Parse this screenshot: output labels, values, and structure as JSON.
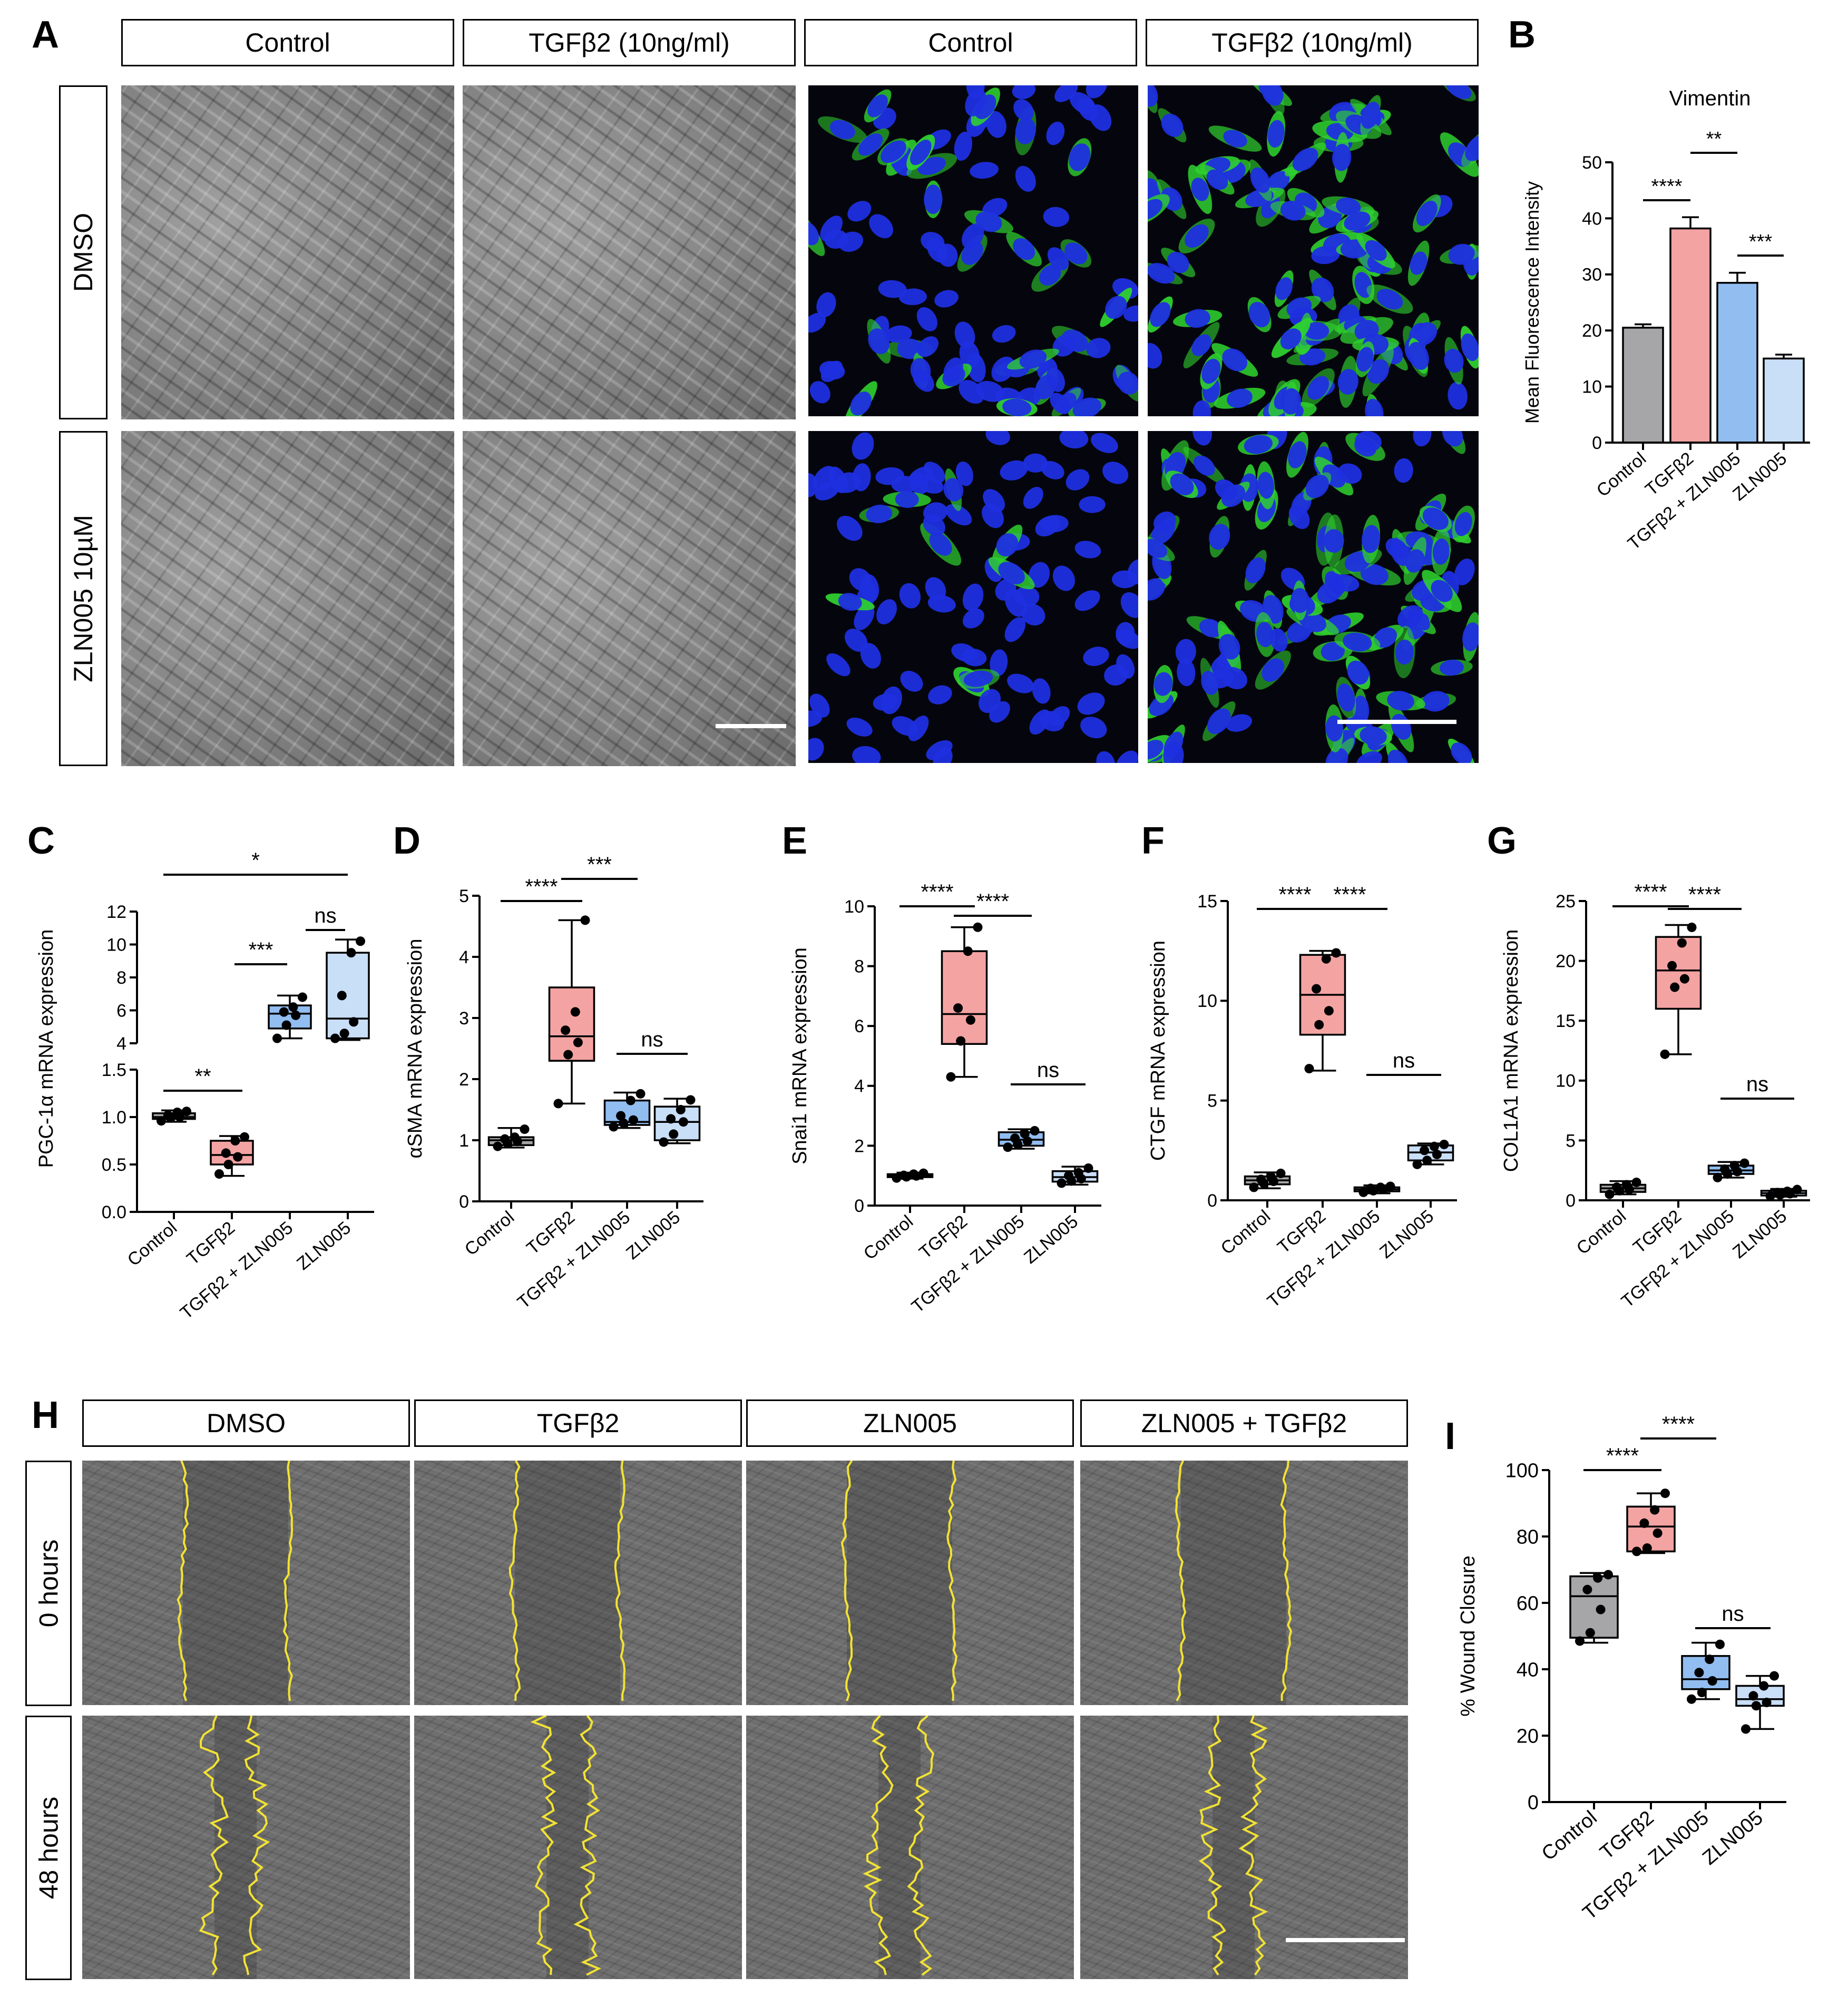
{
  "panels": {
    "A": "A",
    "B": "B",
    "C": "C",
    "D": "D",
    "E": "E",
    "F": "F",
    "G": "G",
    "H": "H",
    "I": "I"
  },
  "panelA": {
    "column_headers": [
      "Control",
      "TGFβ2 (10ng/ml)",
      "Control",
      "TGFβ2 (10ng/ml)"
    ],
    "row_labels": [
      "DMSO",
      "ZLN005 10µM"
    ]
  },
  "panelH": {
    "column_headers": [
      "DMSO",
      "TGFβ2",
      "ZLN005",
      "ZLN005 + TGFβ2"
    ],
    "row_labels": [
      "0 hours",
      "48 hours"
    ]
  },
  "colors": {
    "control": "#a6a6a8",
    "tgfb2": "#f4a3a3",
    "tgfb2_zln005": "#92bdf0",
    "zln005": "#c9def7",
    "wound_line": "#f2e234",
    "nuclei": "#1f2fe0",
    "vimentin": "#2fd02f"
  },
  "chart_data": [
    {
      "panel": "B",
      "type": "bar",
      "title": "Vimentin",
      "ylabel": "Mean Fluorescence Intensity",
      "categories": [
        "Control",
        "TGFβ2",
        "TGFβ2 + ZLN005",
        "ZLN005"
      ],
      "values": [
        20.5,
        38.2,
        28.5,
        15.0
      ],
      "errors": [
        0.6,
        2.0,
        1.8,
        0.7
      ],
      "ylim": [
        0,
        50
      ],
      "yticks": [
        "0",
        "10",
        "20",
        "30",
        "40",
        "50"
      ],
      "significance": [
        {
          "label": "****",
          "pair": [
            0,
            1
          ]
        },
        {
          "label": "**",
          "pair": [
            1,
            2
          ]
        },
        {
          "label": "***",
          "pair": [
            2,
            3
          ]
        }
      ]
    },
    {
      "panel": "C",
      "type": "box",
      "ylabel": "PGC-1α mRNA expression",
      "categories": [
        "Control",
        "TGFβ2",
        "TGFβ2 + ZLN005",
        "ZLN005"
      ],
      "broken_axis": true,
      "lower_ylim": [
        0,
        1.5
      ],
      "upper_ylim": [
        4,
        12
      ],
      "lower_yticks": [
        "0.0",
        "0.5",
        "1.0",
        "1.5"
      ],
      "upper_yticks": [
        "4",
        "6",
        "8",
        "10",
        "12"
      ],
      "boxes": [
        {
          "min": 0.95,
          "q1": 0.98,
          "median": 1.0,
          "q3": 1.04,
          "max": 1.07,
          "points": [
            0.96,
            0.99,
            1.0,
            1.02,
            1.05,
            1.06
          ]
        },
        {
          "min": 0.38,
          "q1": 0.5,
          "median": 0.6,
          "q3": 0.75,
          "max": 0.8,
          "points": [
            0.4,
            0.5,
            0.58,
            0.62,
            0.75,
            0.79
          ]
        },
        {
          "min": 4.3,
          "q1": 4.9,
          "median": 5.8,
          "q3": 6.3,
          "max": 6.9,
          "points": [
            4.3,
            5.1,
            5.7,
            5.9,
            6.2,
            6.8
          ]
        },
        {
          "min": 4.2,
          "q1": 4.3,
          "median": 5.5,
          "q3": 9.5,
          "max": 10.3,
          "points": [
            4.3,
            4.6,
            5.3,
            6.9,
            9.5,
            10.2
          ]
        }
      ],
      "significance": [
        {
          "label": "**",
          "pair": [
            0,
            1
          ]
        },
        {
          "label": "***",
          "pair": [
            1,
            2
          ]
        },
        {
          "label": "ns",
          "pair": [
            2,
            3
          ]
        },
        {
          "label": "*",
          "pair": [
            0,
            3
          ]
        }
      ]
    },
    {
      "panel": "D",
      "type": "box",
      "ylabel": "αSMA mRNA expression",
      "categories": [
        "Control",
        "TGFβ2",
        "TGFβ2 + ZLN005",
        "ZLN005"
      ],
      "ylim": [
        0,
        5
      ],
      "yticks": [
        "0",
        "1",
        "2",
        "3",
        "4",
        "5"
      ],
      "boxes": [
        {
          "min": 0.88,
          "q1": 0.92,
          "median": 1.0,
          "q3": 1.05,
          "max": 1.2,
          "points": [
            0.9,
            0.95,
            0.98,
            1.02,
            1.05,
            1.18
          ]
        },
        {
          "min": 1.6,
          "q1": 2.3,
          "median": 2.7,
          "q3": 3.5,
          "max": 4.6,
          "points": [
            1.6,
            2.4,
            2.6,
            2.8,
            3.1,
            4.6
          ]
        },
        {
          "min": 1.2,
          "q1": 1.25,
          "median": 1.3,
          "q3": 1.65,
          "max": 1.78,
          "points": [
            1.22,
            1.28,
            1.33,
            1.4,
            1.65,
            1.76
          ]
        },
        {
          "min": 0.95,
          "q1": 1.0,
          "median": 1.3,
          "q3": 1.55,
          "max": 1.68,
          "points": [
            0.97,
            1.1,
            1.3,
            1.35,
            1.5,
            1.66
          ]
        }
      ],
      "significance": [
        {
          "label": "****",
          "pair": [
            0,
            1
          ]
        },
        {
          "label": "***",
          "pair": [
            1,
            2
          ]
        },
        {
          "label": "ns",
          "pair": [
            2,
            3
          ]
        }
      ]
    },
    {
      "panel": "E",
      "type": "box",
      "ylabel": "Snai1 mRNA expression",
      "categories": [
        "Control",
        "TGFβ2",
        "TGFβ2 + ZLN005",
        "ZLN005"
      ],
      "ylim": [
        0,
        10
      ],
      "yticks": [
        "0",
        "2",
        "4",
        "6",
        "8",
        "10"
      ],
      "boxes": [
        {
          "min": 0.9,
          "q1": 0.95,
          "median": 1.0,
          "q3": 1.05,
          "max": 1.1,
          "points": [
            0.92,
            0.96,
            0.99,
            1.01,
            1.05,
            1.08
          ]
        },
        {
          "min": 4.3,
          "q1": 5.4,
          "median": 6.4,
          "q3": 8.5,
          "max": 9.3,
          "points": [
            4.3,
            5.5,
            6.2,
            6.6,
            8.5,
            9.3
          ]
        },
        {
          "min": 1.9,
          "q1": 2.0,
          "median": 2.2,
          "q3": 2.45,
          "max": 2.55,
          "points": [
            1.95,
            2.05,
            2.15,
            2.25,
            2.4,
            2.5
          ]
        },
        {
          "min": 0.7,
          "q1": 0.8,
          "median": 0.95,
          "q3": 1.15,
          "max": 1.3,
          "points": [
            0.75,
            0.82,
            0.9,
            1.0,
            1.1,
            1.25
          ]
        }
      ],
      "significance": [
        {
          "label": "****",
          "pair": [
            0,
            1
          ]
        },
        {
          "label": "****",
          "pair": [
            1,
            2
          ]
        },
        {
          "label": "ns",
          "pair": [
            2,
            3
          ]
        }
      ]
    },
    {
      "panel": "F",
      "type": "box",
      "ylabel": "CTGF mRNA expression",
      "categories": [
        "Control",
        "TGFβ2",
        "TGFβ2 + ZLN005",
        "ZLN005"
      ],
      "ylim": [
        0,
        15
      ],
      "yticks": [
        "0",
        "5",
        "10",
        "15"
      ],
      "boxes": [
        {
          "min": 0.6,
          "q1": 0.8,
          "median": 1.0,
          "q3": 1.2,
          "max": 1.4,
          "points": [
            0.65,
            0.85,
            0.95,
            1.05,
            1.2,
            1.35
          ]
        },
        {
          "min": 6.5,
          "q1": 8.3,
          "median": 10.3,
          "q3": 12.3,
          "max": 12.5,
          "points": [
            6.6,
            8.8,
            9.5,
            10.6,
            12.1,
            12.4
          ]
        },
        {
          "min": 0.35,
          "q1": 0.45,
          "median": 0.55,
          "q3": 0.65,
          "max": 0.75,
          "points": [
            0.4,
            0.48,
            0.55,
            0.6,
            0.65,
            0.7
          ]
        },
        {
          "min": 1.8,
          "q1": 2.0,
          "median": 2.4,
          "q3": 2.75,
          "max": 2.85,
          "points": [
            1.8,
            2.0,
            2.3,
            2.5,
            2.7,
            2.8
          ]
        }
      ],
      "significance": [
        {
          "label": "****",
          "pair": [
            0,
            1
          ]
        },
        {
          "label": "****",
          "pair": [
            1,
            2
          ]
        },
        {
          "label": "ns",
          "pair": [
            2,
            3
          ]
        }
      ]
    },
    {
      "panel": "G",
      "type": "box",
      "ylabel": "COL1A1 mRNA expression",
      "categories": [
        "Control",
        "TGFβ2",
        "TGFβ2 + ZLN005",
        "ZLN005"
      ],
      "ylim": [
        0,
        25
      ],
      "yticks": [
        "0",
        "5",
        "10",
        "15",
        "20",
        "25"
      ],
      "boxes": [
        {
          "min": 0.5,
          "q1": 0.7,
          "median": 1.0,
          "q3": 1.3,
          "max": 1.6,
          "points": [
            0.5,
            0.8,
            0.9,
            1.1,
            1.3,
            1.5
          ]
        },
        {
          "min": 12.2,
          "q1": 16.0,
          "median": 19.2,
          "q3": 22.0,
          "max": 23.0,
          "points": [
            12.2,
            17.8,
            18.5,
            19.6,
            21.5,
            22.8
          ]
        },
        {
          "min": 1.9,
          "q1": 2.2,
          "median": 2.5,
          "q3": 2.9,
          "max": 3.2,
          "points": [
            1.9,
            2.2,
            2.4,
            2.6,
            2.9,
            3.1
          ]
        },
        {
          "min": 0.3,
          "q1": 0.4,
          "median": 0.6,
          "q3": 0.8,
          "max": 0.95,
          "points": [
            0.35,
            0.45,
            0.55,
            0.65,
            0.75,
            0.9
          ]
        }
      ],
      "significance": [
        {
          "label": "****",
          "pair": [
            0,
            1
          ]
        },
        {
          "label": "****",
          "pair": [
            1,
            2
          ]
        },
        {
          "label": "ns",
          "pair": [
            2,
            3
          ]
        }
      ]
    },
    {
      "panel": "I",
      "type": "box",
      "ylabel": "% Wound Closure",
      "categories": [
        "Control",
        "TGFβ2",
        "TGFβ2 + ZLN005",
        "ZLN005"
      ],
      "ylim": [
        0,
        100
      ],
      "yticks": [
        "0",
        "20",
        "40",
        "60",
        "80",
        "100"
      ],
      "boxes": [
        {
          "min": 48,
          "q1": 49.5,
          "median": 62,
          "q3": 68,
          "max": 69,
          "points": [
            48.5,
            51,
            58,
            64,
            67.5,
            68.5
          ]
        },
        {
          "min": 75,
          "q1": 75.5,
          "median": 83,
          "q3": 89,
          "max": 93,
          "points": [
            75.5,
            76.5,
            81,
            84,
            88,
            93
          ]
        },
        {
          "min": 31,
          "q1": 34,
          "median": 37,
          "q3": 44,
          "max": 48,
          "points": [
            31,
            33,
            36.5,
            39,
            43,
            47.5
          ]
        },
        {
          "min": 22,
          "q1": 29,
          "median": 31,
          "q3": 35,
          "max": 38,
          "points": [
            22,
            29,
            30,
            32,
            35,
            38
          ]
        }
      ],
      "significance": [
        {
          "label": "****",
          "pair": [
            0,
            1
          ]
        },
        {
          "label": "****",
          "pair": [
            1,
            2
          ]
        },
        {
          "label": "ns",
          "pair": [
            2,
            3
          ]
        }
      ]
    }
  ]
}
